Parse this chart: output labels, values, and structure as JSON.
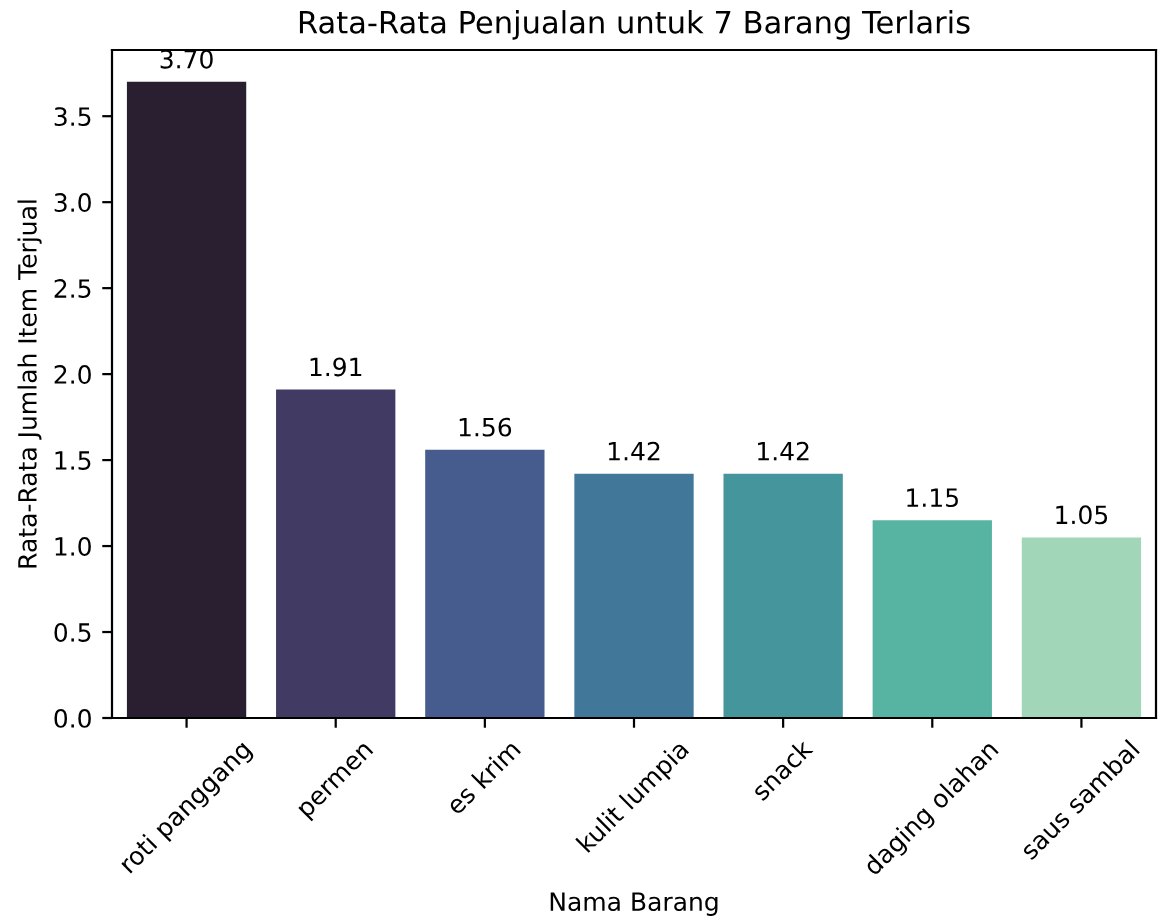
{
  "chart_data": {
    "type": "bar",
    "title": "Rata-Rata Penjualan untuk 7 Barang Terlaris",
    "xlabel": "Nama Barang",
    "ylabel": "Rata-Rata Jumlah Item Terjual",
    "categories": [
      "roti panggang",
      "permen",
      "es krim",
      "kulit lumpia",
      "snack",
      "daging olahan",
      "saus sambal"
    ],
    "values": [
      3.7,
      1.91,
      1.56,
      1.42,
      1.42,
      1.15,
      1.05
    ],
    "colors": [
      "#2a1f30",
      "#413b63",
      "#465c8e",
      "#41789a",
      "#44959c",
      "#57b3a2",
      "#a1d6b8"
    ],
    "value_labels": [
      "3.70",
      "1.91",
      "1.56",
      "1.42",
      "1.42",
      "1.15",
      "1.05"
    ],
    "ylim": [
      0,
      3.885
    ],
    "yticks": [
      {
        "value": 0,
        "label": "0.0"
      },
      0.5,
      {
        "value": 1,
        "label": "1.0"
      },
      1.5,
      {
        "value": 2,
        "label": "2.0"
      },
      2.5,
      {
        "value": 3,
        "label": "3.0"
      },
      3.5
    ],
    "grid": false,
    "legend": false
  }
}
